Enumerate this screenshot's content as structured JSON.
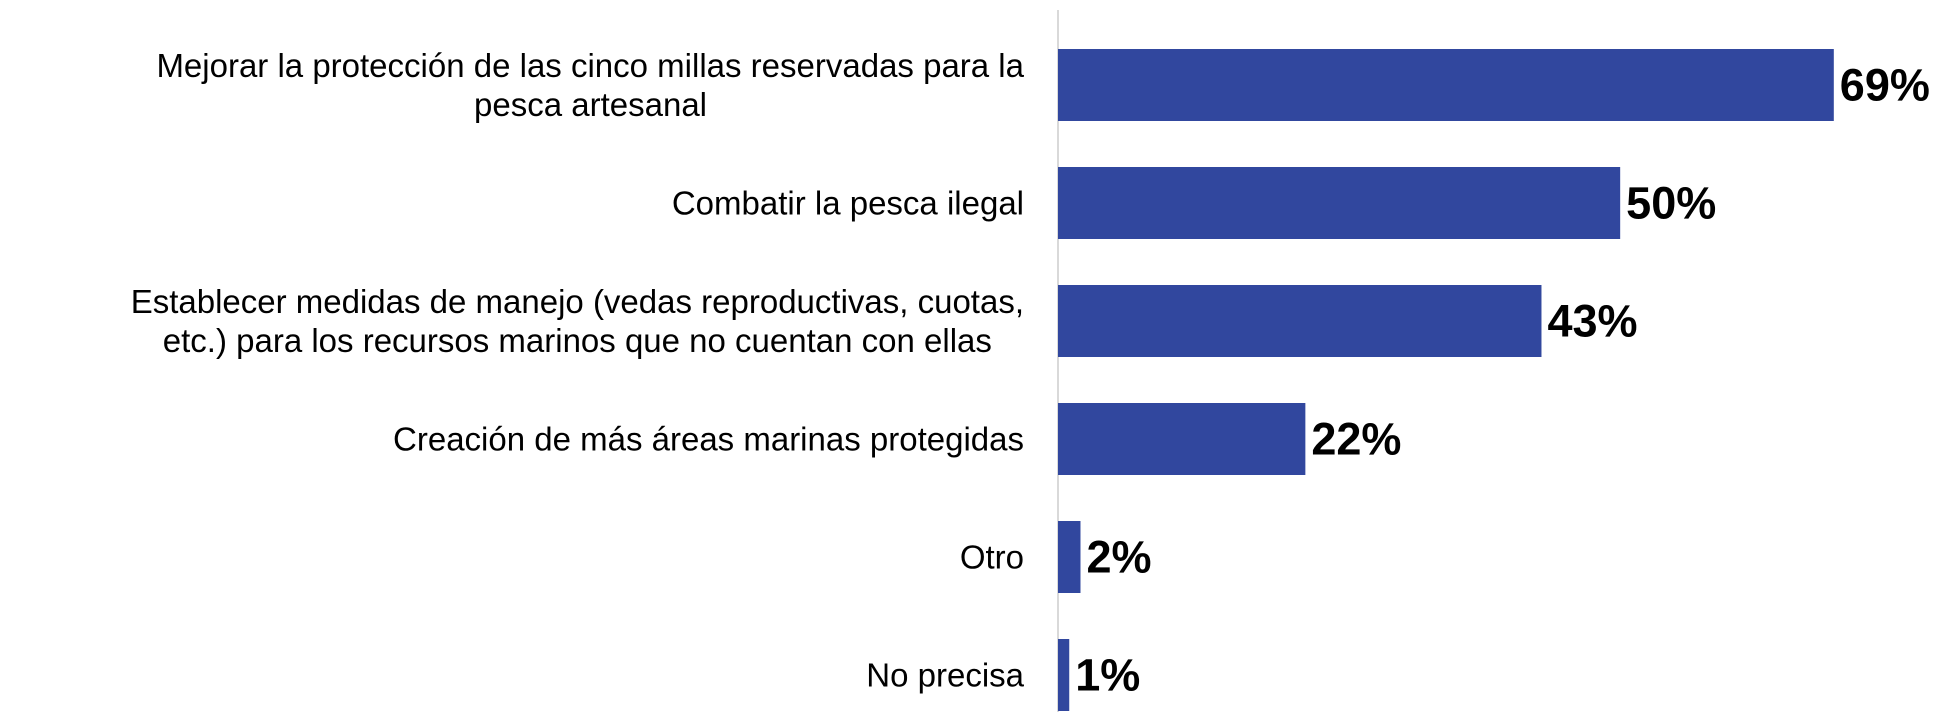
{
  "chart_data": {
    "type": "bar",
    "orientation": "horizontal",
    "categories": [
      [
        "Mejorar la protección de las cinco millas reservadas para la",
        "pesca artesanal"
      ],
      [
        "Combatir la pesca ilegal"
      ],
      [
        "Establecer medidas de manejo (vedas reproductivas, cuotas,",
        "etc.) para los recursos marinos que no cuentan con ellas"
      ],
      [
        "Creación de más áreas marinas protegidas"
      ],
      [
        "Otro"
      ],
      [
        "No precisa"
      ]
    ],
    "values": [
      69,
      50,
      43,
      22,
      2,
      1
    ],
    "value_labels": [
      "69%",
      "50%",
      "43%",
      "22%",
      "2%",
      "1%"
    ],
    "unit": "%",
    "xlim": [
      0,
      78
    ],
    "bar_color": "#31479E",
    "axis_color": "#D9D9D9",
    "grid": false,
    "legend": "none"
  }
}
